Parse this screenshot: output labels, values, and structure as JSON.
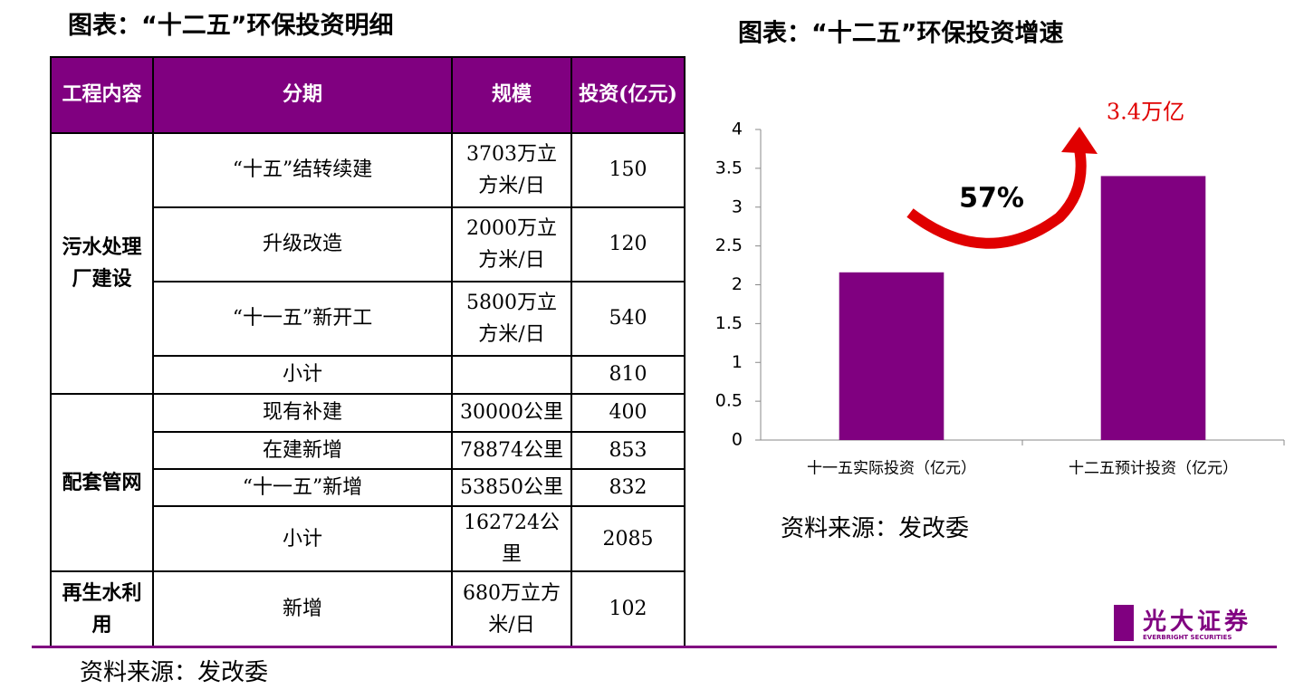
{
  "left_title": "图表：“十二五”环保投资明细",
  "table": {
    "header": [
      "工程内容",
      "分期",
      "规模",
      "投资(亿元)"
    ],
    "groups": [
      {
        "name": "污水处理厂建设",
        "rows": [
          [
            "“十五”结转续建",
            "3703万立方米/日",
            150
          ],
          [
            "升级改造",
            "2000万立方米/日",
            120
          ],
          [
            "“十一五”新开工",
            "5800万立方米/日",
            540
          ],
          [
            "小计",
            null,
            810
          ]
        ]
      },
      {
        "name": "配套管网",
        "rows": [
          [
            "现有补建",
            "30000公里",
            400
          ],
          [
            "在建新增",
            "78874公里",
            853
          ],
          [
            "“十一五”新增",
            "53850公里",
            832
          ],
          [
            "小计",
            "162724公里",
            2085
          ]
        ]
      },
      {
        "name": "再生水利用",
        "rows": [
          [
            "新增",
            "680万立方米/日",
            102
          ]
        ]
      }
    ]
  },
  "left_source": "资料来源：发改委",
  "chart_data": {
    "type": "bar",
    "title": "图表：“十二五”环保投资增速",
    "categories": [
      "十一五实际投资（亿元）",
      "十二五预计投资（亿元）"
    ],
    "values": [
      2.16,
      3.4
    ],
    "color": "#800080",
    "ylim": [
      0,
      4
    ],
    "yticks": [
      0,
      0.5,
      1,
      1.5,
      2,
      2.5,
      3,
      3.5,
      4
    ],
    "annotations": [
      "57%",
      "3.4万亿"
    ],
    "source": "资料来源：发改委"
  },
  "logo": {
    "name": "光大证券",
    "english": "EVERBRIGHT SECURITIES"
  }
}
